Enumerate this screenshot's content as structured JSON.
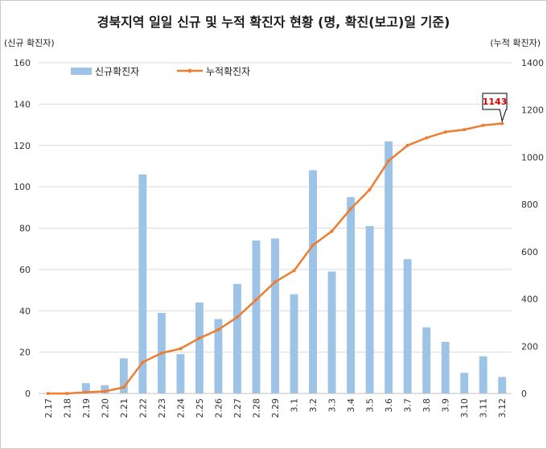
{
  "chart_data": {
    "type": "bar",
    "title": "경북지역 일일 신규 및 누적 확진자 현황 (명, 확진(보고)일 기준)",
    "ylabel_left": "(신규 확진자)",
    "ylabel_right": "(누적 확진자)",
    "categories": [
      "2.17",
      "2.18",
      "2.19",
      "2.20",
      "2.21",
      "2.22",
      "2.23",
      "2.24",
      "2.25",
      "2.26",
      "2.27",
      "2.28",
      "2.29",
      "3.1",
      "3.2",
      "3.3",
      "3.4",
      "3.5",
      "3.6",
      "3.7",
      "3.8",
      "3.9",
      "3.10",
      "3.11",
      "3.12"
    ],
    "series": [
      {
        "name": "신규확진자",
        "type": "bar",
        "axis": "left",
        "color": "#9dc3e6",
        "values": [
          0,
          0,
          5,
          4,
          17,
          106,
          39,
          19,
          44,
          36,
          53,
          74,
          75,
          48,
          108,
          59,
          95,
          81,
          122,
          65,
          32,
          25,
          10,
          18,
          8
        ]
      },
      {
        "name": "누적확진자",
        "type": "line",
        "axis": "right",
        "color": "#ed7d31",
        "values": [
          0,
          0,
          5,
          9,
          26,
          132,
          171,
          190,
          234,
          270,
          323,
          397,
          472,
          520,
          628,
          687,
          782,
          863,
          985,
          1050,
          1082,
          1107,
          1117,
          1135,
          1143
        ]
      }
    ],
    "ylim_left": [
      0,
      160
    ],
    "yticks_left": [
      0,
      20,
      40,
      60,
      80,
      100,
      120,
      140,
      160
    ],
    "ylim_right": [
      0,
      1400
    ],
    "yticks_right": [
      0,
      200,
      400,
      600,
      800,
      1000,
      1200,
      1400
    ],
    "grid": true,
    "legend_position": "top-left",
    "annotation": {
      "label": "1143",
      "category": "3.12",
      "series": "누적확진자",
      "color": "#e00000"
    }
  }
}
